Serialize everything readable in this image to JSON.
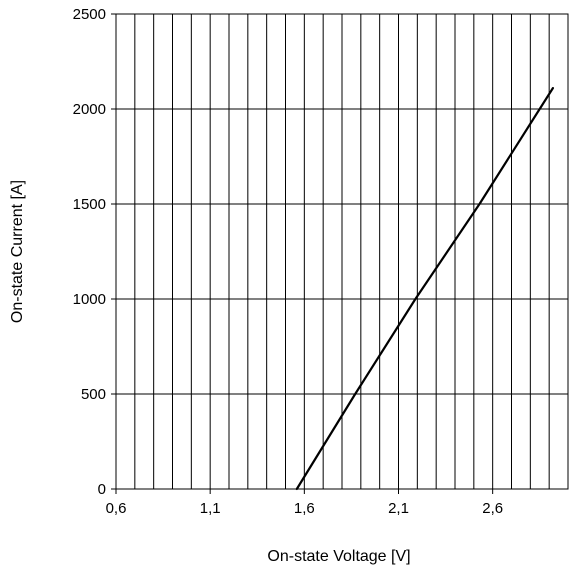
{
  "chart_data": {
    "type": "line",
    "title": "",
    "xlabel": "On-state Voltage [V]",
    "ylabel": "On-state Current [A]",
    "xlim": [
      0.6,
      3.0
    ],
    "ylim": [
      0,
      2500
    ],
    "x_ticks": [
      0.6,
      1.1,
      1.6,
      2.1,
      2.6
    ],
    "x_tick_labels": [
      "0,6",
      "1,1",
      "1,6",
      "2,1",
      "2,6"
    ],
    "y_ticks": [
      0,
      500,
      1000,
      1500,
      2000,
      2500
    ],
    "y_tick_labels": [
      "0",
      "500",
      "1000",
      "1500",
      "2000",
      "2500"
    ],
    "x_grid_step": 0.1,
    "grid": true,
    "legend": "none",
    "series": [
      {
        "x": [
          1.56,
          1.87,
          2.19,
          2.53,
          2.92
        ],
        "y": [
          0,
          500,
          1000,
          1500,
          2110
        ]
      }
    ],
    "colors": {
      "line": "#000000",
      "grid": "#000000"
    }
  }
}
